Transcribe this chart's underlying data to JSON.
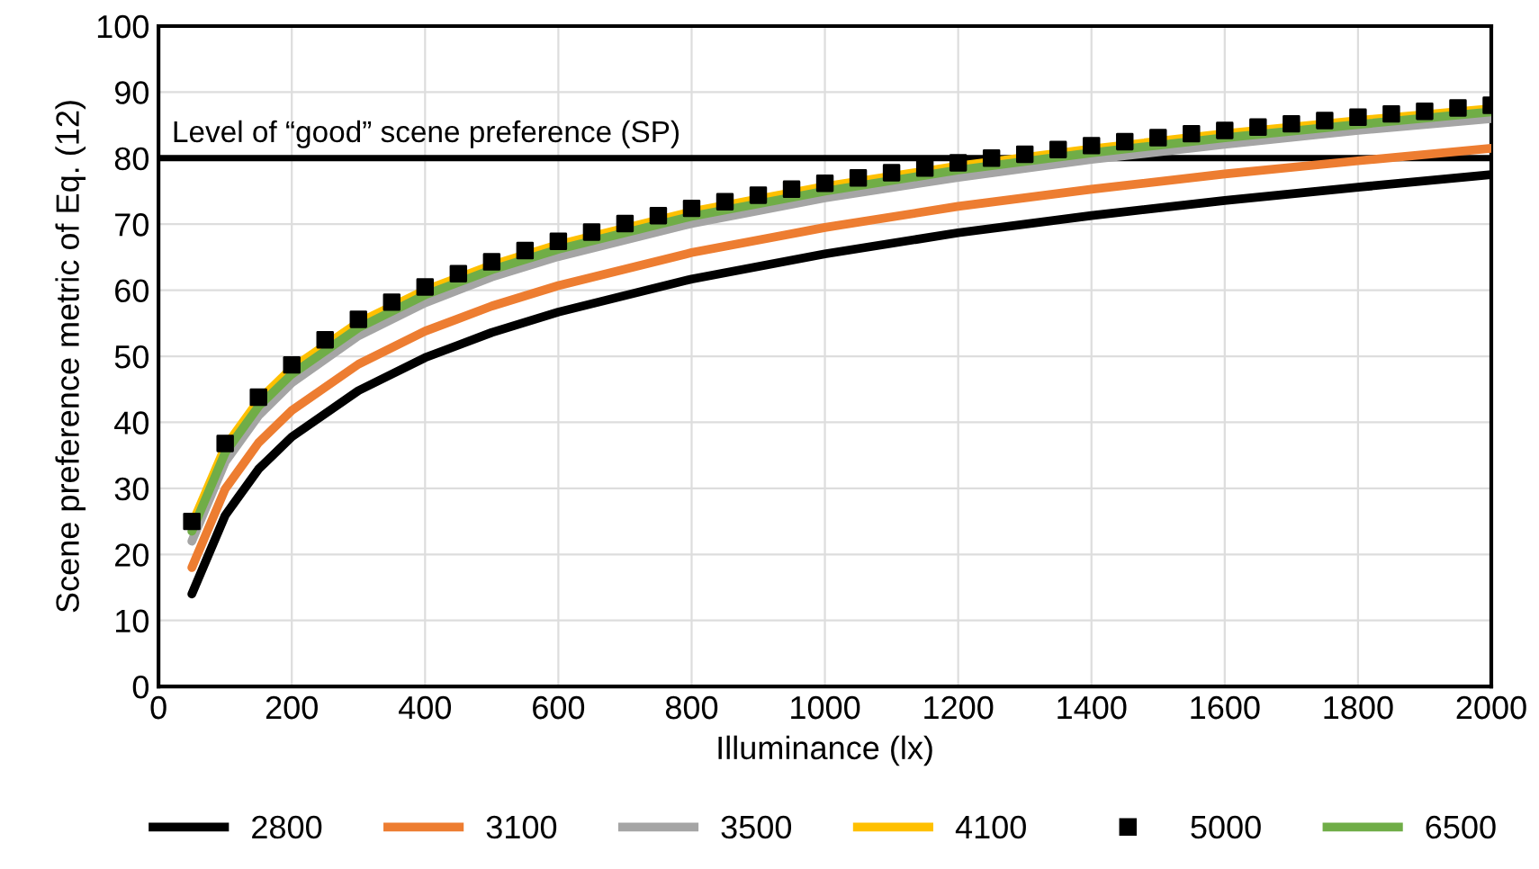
{
  "chart_data": {
    "type": "line",
    "xlabel": "Illuminance (lx)",
    "ylabel": "Scene preference metric of Eq. (12)",
    "xlim": [
      0,
      2000
    ],
    "xticks": [
      0,
      200,
      400,
      600,
      800,
      1000,
      1200,
      1400,
      1600,
      1800,
      2000
    ],
    "ylim": [
      0,
      100
    ],
    "yticks": [
      0,
      10,
      20,
      30,
      40,
      50,
      60,
      70,
      80,
      90,
      100
    ],
    "grid": true,
    "legend": "bottom",
    "marker": "none",
    "line_style": "solid",
    "x": [
      50,
      100,
      150,
      200,
      300,
      400,
      500,
      600,
      800,
      1000,
      1200,
      1400,
      1600,
      1800,
      2000
    ],
    "series": [
      {
        "name": "2800",
        "color": "#000000",
        "values": [
          14,
          25.9,
          32.9,
          37.8,
          44.8,
          49.8,
          53.6,
          56.7,
          61.7,
          65.5,
          68.7,
          71.3,
          73.6,
          75.6,
          77.5
        ]
      },
      {
        "name": "3100",
        "color": "#ed7d31",
        "values": [
          18,
          29.9,
          36.9,
          41.8,
          48.8,
          53.8,
          57.6,
          60.7,
          65.7,
          69.5,
          72.7,
          75.3,
          77.6,
          79.6,
          81.5
        ]
      },
      {
        "name": "3500",
        "color": "#a5a5a5",
        "values": [
          22,
          34,
          41,
          46,
          53.1,
          58.1,
          62,
          65.1,
          70.1,
          74,
          77.1,
          79.8,
          82.1,
          84.2,
          86
        ]
      },
      {
        "name": "4100",
        "color": "#ffc000",
        "values": [
          24.5,
          36.3,
          43.3,
          48.2,
          55.1,
          60,
          63.8,
          66.9,
          71.9,
          75.7,
          78.8,
          81.4,
          83.7,
          85.7,
          87.5
        ]
      },
      {
        "name": "5000",
        "color": "#000000",
        "type": "scatter",
        "marker": "square",
        "x": [
          50,
          100,
          150,
          200,
          250,
          300,
          350,
          400,
          450,
          500,
          550,
          600,
          650,
          700,
          750,
          800,
          850,
          900,
          950,
          1000,
          1050,
          1100,
          1150,
          1200,
          1250,
          1300,
          1350,
          1400,
          1450,
          1500,
          1550,
          1600,
          1650,
          1700,
          1750,
          1800,
          1850,
          1900,
          1950,
          2000
        ],
        "values": [
          25,
          36.8,
          43.8,
          48.7,
          52.5,
          55.6,
          58.2,
          60.5,
          62.5,
          64.3,
          66,
          67.4,
          68.8,
          70.1,
          71.3,
          72.4,
          73.4,
          74.4,
          75.3,
          76.2,
          77,
          77.8,
          78.5,
          79.3,
          80,
          80.6,
          81.3,
          81.9,
          82.5,
          83.1,
          83.7,
          84.2,
          84.7,
          85.2,
          85.7,
          86.2,
          86.7,
          87.1,
          87.6,
          88
        ]
      },
      {
        "name": "6500",
        "color": "#70ad47",
        "values": [
          23.5,
          35.4,
          42.4,
          47.3,
          54.3,
          59.3,
          63.1,
          66.2,
          71.2,
          75,
          78.2,
          80.8,
          83.1,
          85.1,
          87
        ]
      }
    ],
    "ref_lines": [
      {
        "axis": "y",
        "value": 80,
        "label": "Level of “good” scene preference (SP)",
        "color": "#000000"
      }
    ]
  }
}
